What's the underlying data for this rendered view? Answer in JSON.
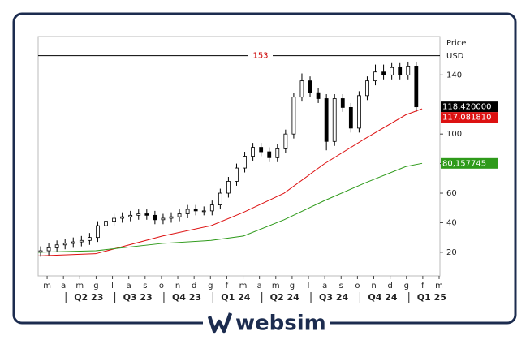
{
  "brand": "websim",
  "chart_data": {
    "type": "candlestick",
    "axis_title": "Price",
    "axis_unit": "USD",
    "xlim": [
      -0.55,
      24.05
    ],
    "ylim": [
      4,
      166
    ],
    "yticks": [
      20,
      40,
      60,
      80,
      100,
      140
    ],
    "xticks": [
      {
        "value": 0,
        "label": "m"
      },
      {
        "value": 1,
        "label": "a"
      },
      {
        "value": 2,
        "label": "m"
      },
      {
        "value": 3,
        "label": "g"
      },
      {
        "value": 4,
        "label": "l"
      },
      {
        "value": 5,
        "label": "a"
      },
      {
        "value": 6,
        "label": "s"
      },
      {
        "value": 7,
        "label": "o"
      },
      {
        "value": 8,
        "label": "n"
      },
      {
        "value": 9,
        "label": "d"
      },
      {
        "value": 10,
        "label": "g"
      },
      {
        "value": 11,
        "label": "f"
      },
      {
        "value": 12,
        "label": "m"
      },
      {
        "value": 13,
        "label": "a"
      },
      {
        "value": 14,
        "label": "m"
      },
      {
        "value": 15,
        "label": "g"
      },
      {
        "value": 16,
        "label": "l"
      },
      {
        "value": 17,
        "label": "a"
      },
      {
        "value": 18,
        "label": "s"
      },
      {
        "value": 19,
        "label": "o"
      },
      {
        "value": 20,
        "label": "n"
      },
      {
        "value": 21,
        "label": "d"
      },
      {
        "value": 22,
        "label": "g"
      },
      {
        "value": 23,
        "label": "f"
      },
      {
        "value": 24,
        "label": "m"
      }
    ],
    "quarters": [
      {
        "value": 1.15,
        "label": "Q2 23"
      },
      {
        "value": 4.15,
        "label": "Q3 23"
      },
      {
        "value": 7.15,
        "label": "Q4 23"
      },
      {
        "value": 10.15,
        "label": "Q1 24"
      },
      {
        "value": 13.15,
        "label": "Q2 24"
      },
      {
        "value": 16.15,
        "label": "Q3 24"
      },
      {
        "value": 19.15,
        "label": "Q4 24"
      },
      {
        "value": 22.15,
        "label": "Q1 25"
      }
    ],
    "hline": {
      "value": 153,
      "color": "#cc0000"
    },
    "candles": {
      "x": [
        -0.4,
        0.1,
        0.6,
        1.1,
        1.6,
        2.1,
        2.6,
        3.1,
        3.6,
        4.1,
        4.6,
        5.1,
        5.6,
        6.1,
        6.6,
        7.1,
        7.6,
        8.1,
        8.6,
        9.1,
        9.6,
        10.1,
        10.6,
        11.1,
        11.6,
        12.1,
        12.6,
        13.1,
        13.6,
        14.1,
        14.6,
        15.1,
        15.6,
        16.1,
        16.6,
        17.1,
        17.6,
        18.1,
        18.6,
        19.1,
        19.6,
        20.1,
        20.6,
        21.1,
        21.6,
        22.1,
        22.6
      ],
      "open": [
        20,
        21,
        23,
        25,
        26,
        27,
        28,
        30,
        38,
        41,
        43,
        44,
        45,
        46,
        45,
        42,
        43,
        44,
        46,
        49,
        48,
        48,
        52,
        60,
        68,
        77,
        85,
        91,
        88,
        84,
        90,
        100,
        125,
        136,
        128,
        124,
        95,
        124,
        118,
        104,
        126,
        136,
        142,
        140,
        145,
        140,
        146
      ],
      "high": [
        24,
        26,
        28,
        29,
        30,
        31,
        33,
        41,
        44,
        46,
        47,
        48,
        49,
        49,
        48,
        46,
        47,
        49,
        52,
        52,
        51,
        55,
        63,
        71,
        80,
        88,
        94,
        94,
        91,
        93,
        103,
        128,
        141,
        139,
        131,
        127,
        127,
        127,
        121,
        129,
        139,
        147,
        147,
        148,
        148,
        149,
        149
      ],
      "low": [
        17,
        18,
        20,
        22,
        23,
        24,
        25,
        27,
        35,
        38,
        40,
        41,
        42,
        42,
        39,
        39,
        40,
        41,
        43,
        45,
        45,
        45,
        49,
        57,
        65,
        74,
        82,
        85,
        81,
        81,
        87,
        97,
        122,
        125,
        121,
        89,
        92,
        115,
        101,
        101,
        123,
        133,
        137,
        137,
        137,
        137,
        115
      ],
      "close": [
        21,
        23,
        25,
        26,
        27,
        28,
        30,
        38,
        41,
        43,
        44,
        45,
        46,
        45,
        42,
        43,
        44,
        46,
        49,
        48,
        48,
        52,
        60,
        68,
        77,
        85,
        91,
        88,
        84,
        90,
        100,
        125,
        136,
        128,
        124,
        95,
        124,
        118,
        104,
        126,
        136,
        142,
        140,
        145,
        140,
        146,
        118.42
      ],
      "last_label": "118,420000",
      "label_color": "#000000"
    },
    "lines": [
      {
        "color": "#dd1111",
        "x": [
          -0.55,
          2.98,
          7.06,
          10.04,
          12.02,
          14.51,
          16.99,
          19.48,
          21.96,
          22.96
        ],
        "values": [
          17.5,
          19,
          31,
          38,
          47,
          60,
          80,
          97,
          113,
          117.08
        ],
        "last_label": "117,081810"
      },
      {
        "color": "#2e9a1a",
        "x": [
          -0.55,
          2.98,
          7.06,
          10.04,
          12.02,
          14.51,
          16.99,
          19.48,
          21.96,
          22.96
        ],
        "values": [
          20,
          21,
          26,
          28,
          31,
          42,
          55,
          67,
          78,
          80.16
        ],
        "last_label": "80,157745"
      }
    ]
  }
}
